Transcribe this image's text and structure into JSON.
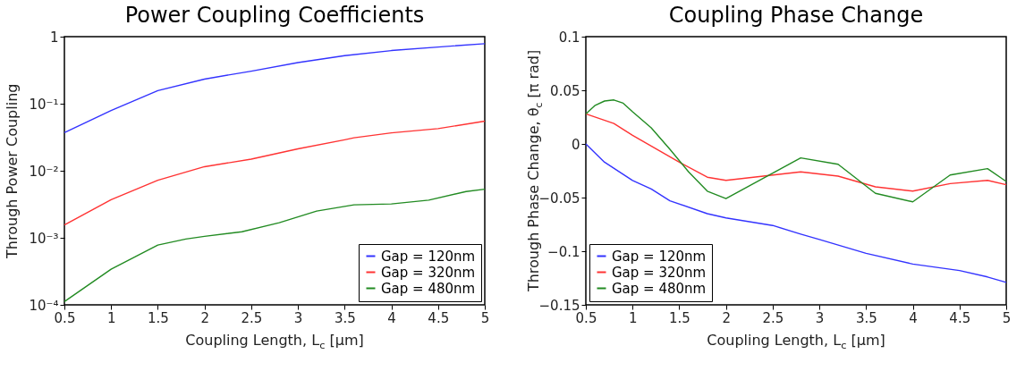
{
  "chart_data": [
    {
      "type": "line",
      "title": "Power Coupling Coefficients",
      "xlabel": "Coupling Length, L$_{c}$ [μm]",
      "ylabel": "Through Power Coupling",
      "log": "y",
      "grid": false,
      "legend": "bottom right",
      "xlim": [
        0.5,
        5
      ],
      "xticks": [
        0.5,
        1,
        1.5,
        2,
        2.5,
        3,
        3.5,
        4,
        4.5,
        5
      ],
      "ylim": [
        0.0001,
        1
      ],
      "yticks": [
        {
          "value": 0.0001,
          "label": "10⁻⁴"
        },
        {
          "value": 0.001,
          "label": "10⁻³"
        },
        {
          "value": 0.01,
          "label": "10⁻²"
        },
        {
          "value": 0.1,
          "label": "10⁻¹"
        },
        1
      ],
      "series": [
        {
          "name": "Gap = 120nm",
          "color": "#3333ff",
          "x": [
            0.5,
            1,
            1.5,
            2,
            2.5,
            3,
            3.5,
            4,
            4.5,
            5
          ],
          "values": [
            0.037,
            0.079,
            0.157,
            0.233,
            0.306,
            0.41,
            0.52,
            0.62,
            0.7,
            0.785
          ]
        },
        {
          "name": "Gap = 320nm",
          "color": "#ff3333",
          "x": [
            0.5,
            1,
            1.5,
            2,
            2.5,
            3,
            3.5,
            3.6,
            4,
            4.5,
            5
          ],
          "values": [
            0.00155,
            0.0037,
            0.0072,
            0.0115,
            0.0149,
            0.0212,
            0.029,
            0.031,
            0.0367,
            0.0425,
            0.055
          ]
        },
        {
          "name": "Gap = 480nm",
          "color": "#228b22",
          "x": [
            0.5,
            1,
            1.5,
            1.8,
            2,
            2.4,
            2.8,
            3.2,
            3.6,
            4,
            4.4,
            4.8,
            5
          ],
          "values": [
            0.000112,
            0.00034,
            0.00078,
            0.00096,
            0.00105,
            0.00123,
            0.00168,
            0.0025,
            0.0031,
            0.0032,
            0.00365,
            0.0049,
            0.0053
          ]
        }
      ]
    },
    {
      "type": "line",
      "title": "Coupling Phase Change",
      "xlabel": "Coupling Length, L$_{c}$ [μm]",
      "ylabel": "Through Phase Change, θ$_{c}$ [π rad]",
      "grid": false,
      "legend": "bottom left",
      "xlim": [
        0.5,
        5
      ],
      "xticks": [
        0.5,
        1,
        1.5,
        2,
        2.5,
        3,
        3.5,
        4,
        4.5,
        5
      ],
      "ylim": [
        -0.15,
        0.1
      ],
      "yticks": [
        {
          "value": -0.15,
          "label": "−0.15"
        },
        {
          "value": -0.1,
          "label": "−0.1"
        },
        {
          "value": -0.05,
          "label": "−0.05"
        },
        0,
        0.05,
        0.1
      ],
      "series": [
        {
          "name": "Gap = 120nm",
          "color": "#3333ff",
          "x": [
            0.5,
            0.7,
            1,
            1.2,
            1.4,
            1.8,
            2,
            2.5,
            2.8,
            3,
            3.5,
            4,
            4.5,
            4.8,
            5
          ],
          "values": [
            0,
            -0.017,
            -0.034,
            -0.042,
            -0.053,
            -0.065,
            -0.069,
            -0.076,
            -0.084,
            -0.089,
            -0.102,
            -0.112,
            -0.118,
            -0.124,
            -0.129
          ]
        },
        {
          "name": "Gap = 320nm",
          "color": "#ff3333",
          "x": [
            0.5,
            0.8,
            1,
            1.2,
            1.5,
            1.8,
            2,
            2.4,
            2.8,
            3.2,
            3.6,
            4,
            4.4,
            4.8,
            5
          ],
          "values": [
            0.028,
            0.019,
            0.008,
            -0.002,
            -0.017,
            -0.031,
            -0.034,
            -0.03,
            -0.026,
            -0.03,
            -0.04,
            -0.044,
            -0.037,
            -0.034,
            -0.038
          ]
        },
        {
          "name": "Gap = 480nm",
          "color": "#228b22",
          "x": [
            0.5,
            0.6,
            0.7,
            0.8,
            0.9,
            1,
            1.2,
            1.4,
            1.6,
            1.8,
            2,
            2.4,
            2.8,
            3.2,
            3.6,
            4,
            4.4,
            4.8,
            5
          ],
          "values": [
            0.028,
            0.036,
            0.04,
            0.041,
            0.038,
            0.03,
            0.015,
            -0.005,
            -0.026,
            -0.044,
            -0.051,
            -0.032,
            -0.013,
            -0.019,
            -0.046,
            -0.054,
            -0.029,
            -0.023,
            -0.035
          ]
        }
      ]
    }
  ]
}
